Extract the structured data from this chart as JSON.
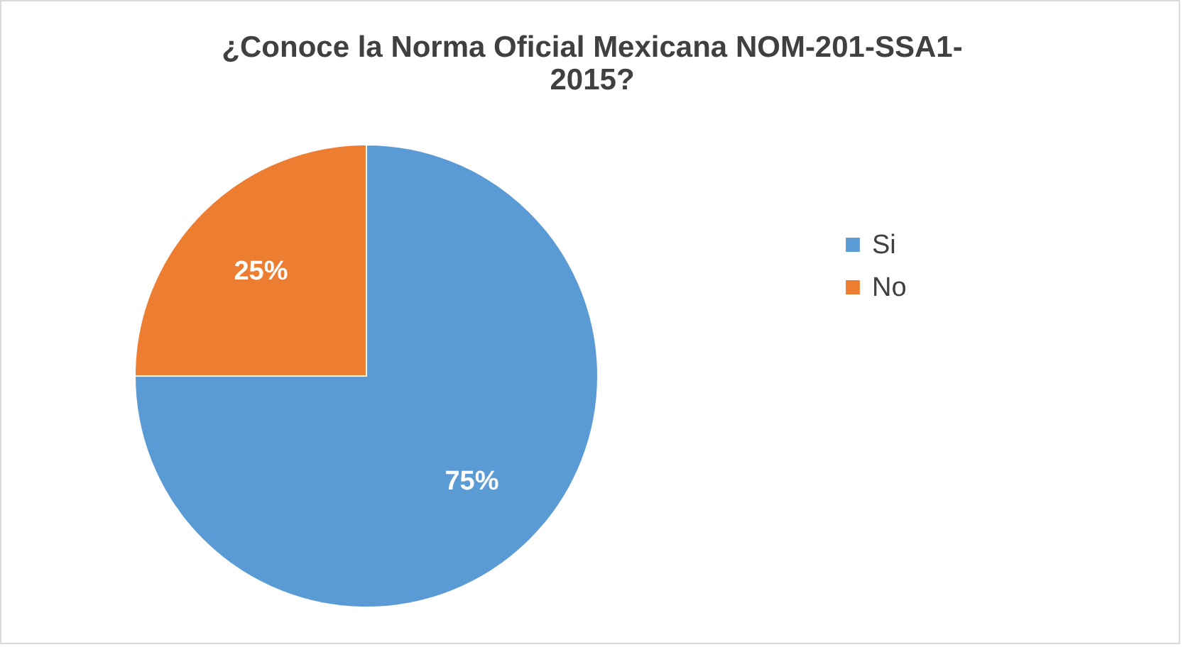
{
  "chart_data": {
    "type": "pie",
    "title": "¿Conoce la Norma Oficial Mexicana NOM-201-SSA1-2015?",
    "categories": [
      "Si",
      "No"
    ],
    "values": [
      75,
      25
    ],
    "colors": [
      "#5b9bd5",
      "#ed7d31"
    ],
    "value_labels": [
      "75%",
      "25%"
    ],
    "legend": "right"
  }
}
